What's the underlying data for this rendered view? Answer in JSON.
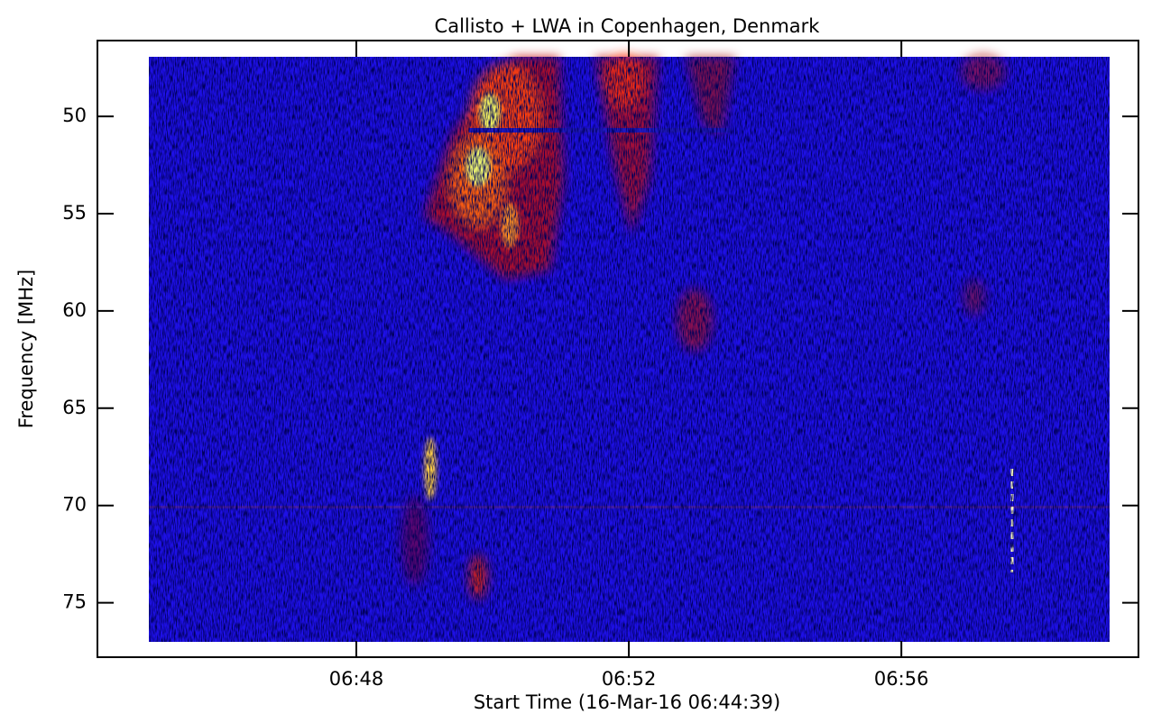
{
  "chart_data": {
    "type": "spectrogram",
    "title": "Callisto + LWA in Copenhagen, Denmark",
    "x_label": "Start Time (16-Mar-16 06:44:39)",
    "y_label": "Frequency [MHz]",
    "xlim": [
      404.2,
      419.48
    ],
    "xticks": [
      {
        "value": 408,
        "label": "06:48"
      },
      {
        "value": 412,
        "label": "06:52"
      },
      {
        "value": 416,
        "label": "06:56"
      }
    ],
    "ylim": [
      46.1,
      77.8
    ],
    "y_reversed": true,
    "yticks": [
      50,
      55,
      60,
      65,
      70,
      75
    ],
    "color": "#1e10e6"
  }
}
